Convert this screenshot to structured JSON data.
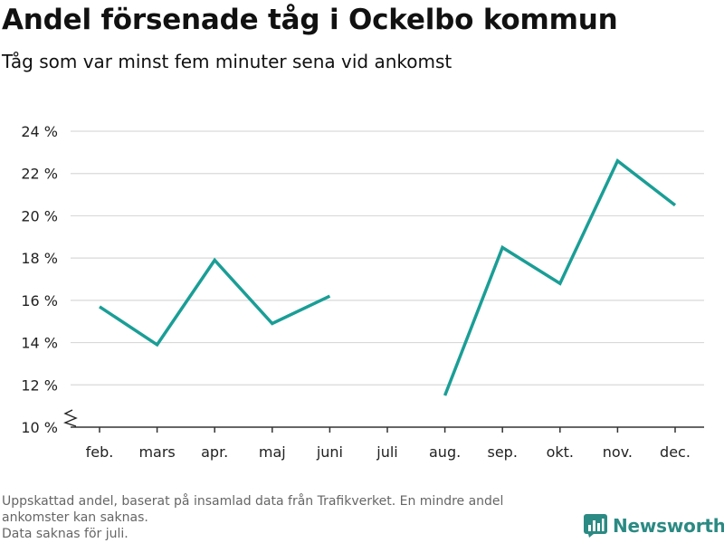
{
  "header": {
    "title": "Andel försenade tåg i Ockelbo kommun",
    "subtitle": "Tåg som var minst fem minuter sena vid ankomst"
  },
  "footnote": {
    "line1": "Uppskattad andel, baserat på insamlad data från Trafikverket. En mindre andel",
    "line2": "ankomster kan saknas.",
    "line3": "Data saknas för juli."
  },
  "brand": {
    "name": "Newsworthy",
    "icon": "bar-chart-logo-icon",
    "color": "#2b8a83"
  },
  "chart_data": {
    "type": "line",
    "categories": [
      "feb.",
      "mars",
      "apr.",
      "maj",
      "juni",
      "juli",
      "aug.",
      "sep.",
      "okt.",
      "nov.",
      "dec."
    ],
    "series": [
      {
        "values": [
          15.7,
          13.9,
          17.9,
          14.9,
          16.2,
          null,
          11.5,
          18.5,
          16.8,
          22.6,
          20.5
        ],
        "color": "#1a9e96"
      }
    ],
    "ylim": [
      10,
      24
    ],
    "yticks": [
      10,
      12,
      14,
      16,
      18,
      20,
      22,
      24
    ],
    "ytick_suffix": " %",
    "axis_break": true,
    "grid": true
  }
}
